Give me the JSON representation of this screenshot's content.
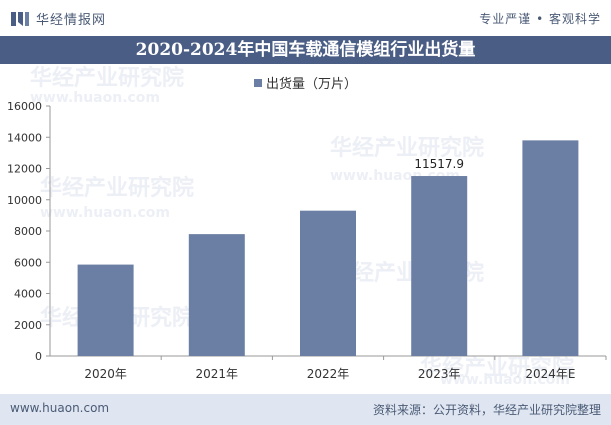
{
  "header": {
    "brand": "华经情报网",
    "slogan": "专业严谨 • 客观科学"
  },
  "title": "2020-2024年中国车载通信模组行业出货量",
  "legend": {
    "label": "出货量（万片）"
  },
  "chart_data": {
    "type": "bar",
    "title": "2020-2024年中国车载通信模组行业出货量",
    "categories": [
      "2020年",
      "2021年",
      "2022年",
      "2023年",
      "2024年E"
    ],
    "series": [
      {
        "name": "出货量（万片）",
        "values": [
          5850,
          7800,
          9300,
          11517.9,
          13800
        ],
        "color": "#6b7ea3"
      }
    ],
    "data_labels": [
      {
        "category": "2023年",
        "text": "11517.9"
      }
    ],
    "ylim": [
      0,
      16000
    ],
    "yticks": [
      0,
      2000,
      4000,
      6000,
      8000,
      10000,
      12000,
      14000,
      16000
    ],
    "grid": false,
    "legend_position": "top-center"
  },
  "footer": {
    "website": "www.huaon.com",
    "source": "资料来源：公开资料，华经产业研究院整理"
  },
  "colors": {
    "title_bar": "#4a5d84",
    "bar": "#6b7ea3",
    "footer_bg": "#dfe6f1",
    "brand_text": "#4a5a75"
  },
  "watermarks": [
    "华经产业研究院",
    "www.huaon.com"
  ]
}
